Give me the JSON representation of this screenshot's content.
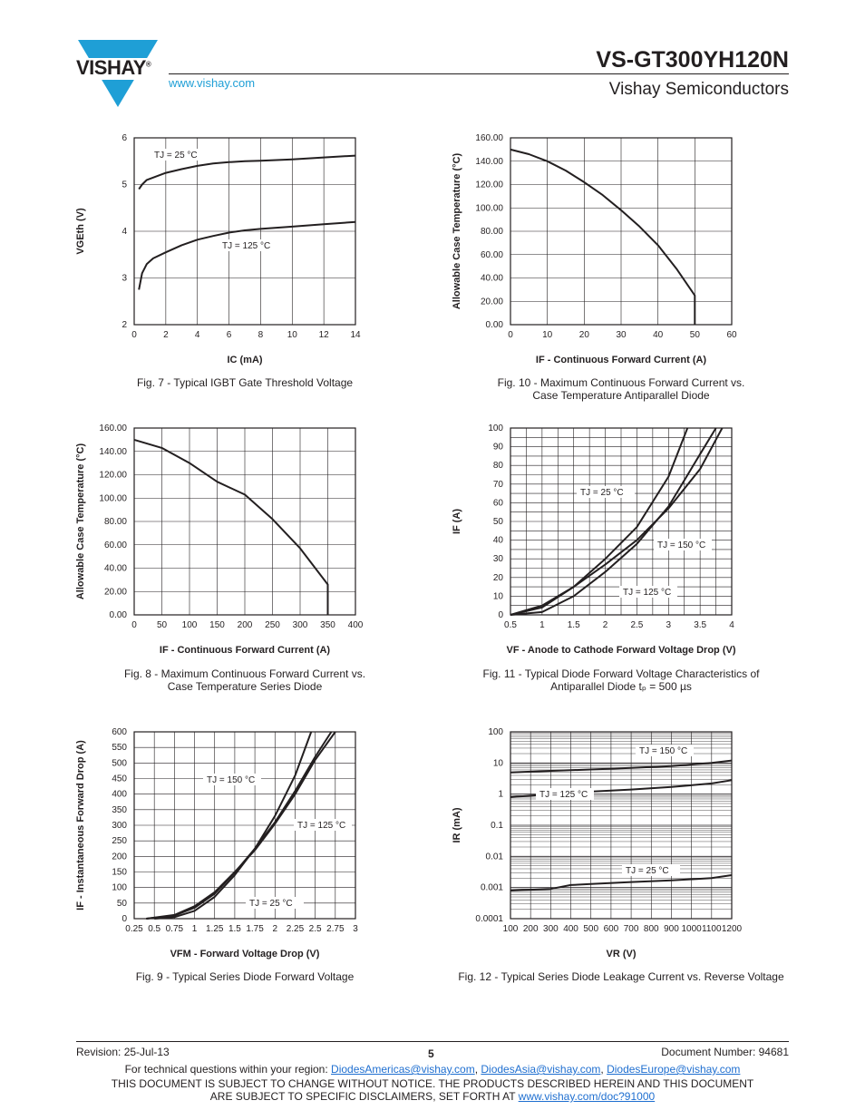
{
  "header": {
    "logo_text": "VISHAY",
    "logo_mark": "®",
    "url": "www.vishay.com",
    "part_number": "VS-GT300YH120N",
    "company": "Vishay Semiconductors"
  },
  "figures": [
    {
      "id": "fig7",
      "caption": "Fig. 7 - Typical IGBT Gate Threshold Voltage"
    },
    {
      "id": "fig10",
      "caption_lines": [
        "Fig. 10 - Maximum Continuous Forward Current vs.",
        "Case Temperature Antiparallel Diode"
      ]
    },
    {
      "id": "fig8",
      "caption_lines": [
        "Fig. 8 - Maximum Continuous Forward Current vs.",
        "Case Temperature Series Diode"
      ]
    },
    {
      "id": "fig11",
      "caption_lines": [
        "Fig. 11 - Typical Diode Forward Voltage Characteristics of",
        "Antiparallel Diode tₚ = 500 µs"
      ]
    },
    {
      "id": "fig9",
      "caption": "Fig. 9 - Typical Series Diode Forward Voltage"
    },
    {
      "id": "fig12",
      "caption": "Fig. 12 - Typical Series Diode Leakage Current vs. Reverse Voltage"
    }
  ],
  "chart_data": [
    {
      "id": "fig7",
      "type": "line",
      "xlabel": "IC (mA)",
      "ylabel": "VGEth (V)",
      "xlim": [
        0,
        14
      ],
      "ylim": [
        2,
        6
      ],
      "xticks": [
        "0",
        "2",
        "4",
        "6",
        "8",
        "10",
        "12",
        "14"
      ],
      "yticks": [
        "2",
        "3",
        "4",
        "5",
        "6"
      ],
      "grid": true,
      "series": [
        {
          "name": "TJ = 25 °C",
          "x": [
            0.3,
            0.5,
            0.8,
            1.2,
            2,
            3,
            4,
            5,
            6,
            7,
            8,
            10,
            12,
            14
          ],
          "y": [
            4.9,
            5.0,
            5.1,
            5.15,
            5.25,
            5.33,
            5.4,
            5.45,
            5.48,
            5.5,
            5.51,
            5.54,
            5.58,
            5.62
          ]
        },
        {
          "name": "TJ = 125 °C",
          "x": [
            0.3,
            0.5,
            0.8,
            1.2,
            2,
            3,
            4,
            5,
            6,
            7,
            8,
            10,
            12,
            14
          ],
          "y": [
            2.75,
            3.1,
            3.3,
            3.42,
            3.55,
            3.7,
            3.82,
            3.9,
            3.97,
            4.02,
            4.05,
            4.1,
            4.15,
            4.2
          ]
        }
      ]
    },
    {
      "id": "fig10",
      "type": "line",
      "xlabel": "IF - Continuous Forward Current (A)",
      "ylabel": "Allowable Case Temperature (°C)",
      "xlim": [
        0,
        60
      ],
      "ylim": [
        0,
        160
      ],
      "xticks": [
        "0",
        "10",
        "20",
        "30",
        "40",
        "50",
        "60"
      ],
      "yticks": [
        "0.00",
        "20.00",
        "40.00",
        "60.00",
        "80.00",
        "100.00",
        "120.00",
        "140.00",
        "160.00"
      ],
      "grid": true,
      "series": [
        {
          "x": [
            0,
            5,
            10,
            15,
            20,
            25,
            30,
            35,
            40,
            45,
            50,
            50
          ],
          "y": [
            150,
            146,
            140,
            132,
            122,
            111,
            98,
            84,
            68,
            48,
            25,
            0
          ]
        }
      ]
    },
    {
      "id": "fig8",
      "type": "line",
      "xlabel": "IF - Continuous Forward Current (A)",
      "ylabel": "Allowable Case Temperature (°C)",
      "xlim": [
        0,
        400
      ],
      "ylim": [
        0,
        160
      ],
      "xticks": [
        "0",
        "50",
        "100",
        "150",
        "200",
        "250",
        "300",
        "350",
        "400"
      ],
      "yticks": [
        "0.00",
        "20.00",
        "40.00",
        "60.00",
        "80.00",
        "100.00",
        "120.00",
        "140.00",
        "160.00"
      ],
      "grid": true,
      "series": [
        {
          "x": [
            0,
            50,
            100,
            150,
            200,
            250,
            300,
            350,
            350
          ],
          "y": [
            150,
            143,
            130,
            114,
            103,
            82,
            57,
            26,
            0
          ]
        }
      ]
    },
    {
      "id": "fig11",
      "type": "line",
      "xlabel": "VF - Anode to Cathode Forward Voltage Drop (V)",
      "ylabel": "IF (A)",
      "xlim": [
        0.5,
        4
      ],
      "ylim": [
        0,
        100
      ],
      "xticks": [
        "0.5",
        "1",
        "1.5",
        "2",
        "2.5",
        "3",
        "3.5",
        "4"
      ],
      "yticks": [
        "0",
        "10",
        "20",
        "30",
        "40",
        "50",
        "60",
        "70",
        "80",
        "90",
        "100"
      ],
      "grid": true,
      "series": [
        {
          "name": "TJ = 25 °C",
          "x": [
            0.5,
            1,
            1.5,
            2,
            2.5,
            3,
            3.5,
            3.75
          ],
          "y": [
            0,
            1.5,
            10,
            23,
            38,
            58,
            86,
            100
          ]
        },
        {
          "name": "TJ = 150 °C",
          "x": [
            0.5,
            1,
            1.5,
            2,
            2.5,
            3,
            3.5,
            3.85
          ],
          "y": [
            0,
            5,
            15,
            27,
            40,
            57,
            78,
            100
          ]
        },
        {
          "name": "TJ = 125 °C",
          "x": [
            0.5,
            1,
            1.5,
            2,
            2.5,
            3,
            3.3
          ],
          "y": [
            0,
            4,
            15,
            30,
            47,
            74,
            100
          ]
        }
      ]
    },
    {
      "id": "fig9",
      "type": "line",
      "xlabel": "VFM - Forward Voltage Drop (V)",
      "ylabel": "IF - Instantaneous Forward Drop (A)",
      "xlim": [
        0.25,
        3
      ],
      "ylim": [
        0,
        600
      ],
      "xticks": [
        "0.25",
        "0.5",
        "0.75",
        "1",
        "1.25",
        "1.5",
        "1.75",
        "2",
        "2.25",
        "2.5",
        "2.75",
        "3"
      ],
      "yticks": [
        "0",
        "50",
        "100",
        "150",
        "200",
        "250",
        "300",
        "350",
        "400",
        "450",
        "500",
        "550",
        "600"
      ],
      "grid": true,
      "series": [
        {
          "name": "TJ = 150 °C",
          "x": [
            0.4,
            0.75,
            1,
            1.25,
            1.5,
            1.75,
            2,
            2.25,
            2.5,
            2.75
          ],
          "y": [
            0,
            12,
            40,
            85,
            150,
            220,
            305,
            400,
            510,
            600
          ]
        },
        {
          "name": "TJ = 125 °C",
          "x": [
            0.4,
            0.75,
            1,
            1.25,
            1.5,
            1.75,
            2,
            2.25,
            2.5,
            2.7
          ],
          "y": [
            0,
            10,
            35,
            80,
            148,
            225,
            310,
            410,
            520,
            600
          ]
        },
        {
          "name": "TJ = 25 °C",
          "x": [
            0.5,
            0.75,
            1,
            1.25,
            1.5,
            1.75,
            2,
            2.25,
            2.45
          ],
          "y": [
            0,
            5,
            25,
            70,
            140,
            225,
            330,
            460,
            600
          ]
        }
      ]
    },
    {
      "id": "fig12",
      "type": "line",
      "xlabel": "VR (V)",
      "ylabel": "IR (mA)",
      "xlim": [
        100,
        1200
      ],
      "ylim": [
        0.0001,
        100
      ],
      "yscale": "log",
      "xticks": [
        "100",
        "200",
        "300",
        "400",
        "500",
        "600",
        "700",
        "800",
        "900",
        "1000",
        "1100",
        "1200"
      ],
      "yticks": [
        "0.0001",
        "0.001",
        "0.01",
        "0.1",
        "1",
        "10",
        "100"
      ],
      "grid": true,
      "series": [
        {
          "name": "TJ = 150 °C",
          "x": [
            100,
            300,
            500,
            700,
            900,
            1100,
            1200
          ],
          "y": [
            5,
            5.6,
            6.2,
            7,
            8,
            10,
            12
          ]
        },
        {
          "name": "TJ = 125 °C",
          "x": [
            100,
            300,
            500,
            700,
            900,
            1100,
            1200
          ],
          "y": [
            0.8,
            1.0,
            1.2,
            1.4,
            1.7,
            2.2,
            2.8
          ]
        },
        {
          "name": "TJ = 25 °C",
          "x": [
            100,
            300,
            400,
            500,
            700,
            900,
            1100,
            1200
          ],
          "y": [
            0.0008,
            0.0009,
            0.0012,
            0.0013,
            0.0015,
            0.0017,
            0.002,
            0.0025
          ]
        }
      ]
    }
  ],
  "footer": {
    "revision": "Revision: 25-Jul-13",
    "page": "5",
    "document_number": "Document Number: 94681",
    "contact_prefix": "For technical questions within your region: ",
    "emails": [
      "DiodesAmericas@vishay.com",
      "DiodesAsia@vishay.com",
      "DiodesEurope@vishay.com"
    ],
    "disclaimer_line1": "THIS DOCUMENT IS SUBJECT TO CHANGE WITHOUT NOTICE. THE PRODUCTS DESCRIBED HEREIN AND THIS DOCUMENT",
    "disclaimer_line2": "ARE SUBJECT TO SPECIFIC DISCLAIMERS, SET FORTH AT ",
    "disclaimer_link": "www.vishay.com/doc?91000"
  },
  "colors": {
    "logo_blue": "#1f9fd6",
    "text": "#231f20",
    "link": "#1f6fd0"
  }
}
